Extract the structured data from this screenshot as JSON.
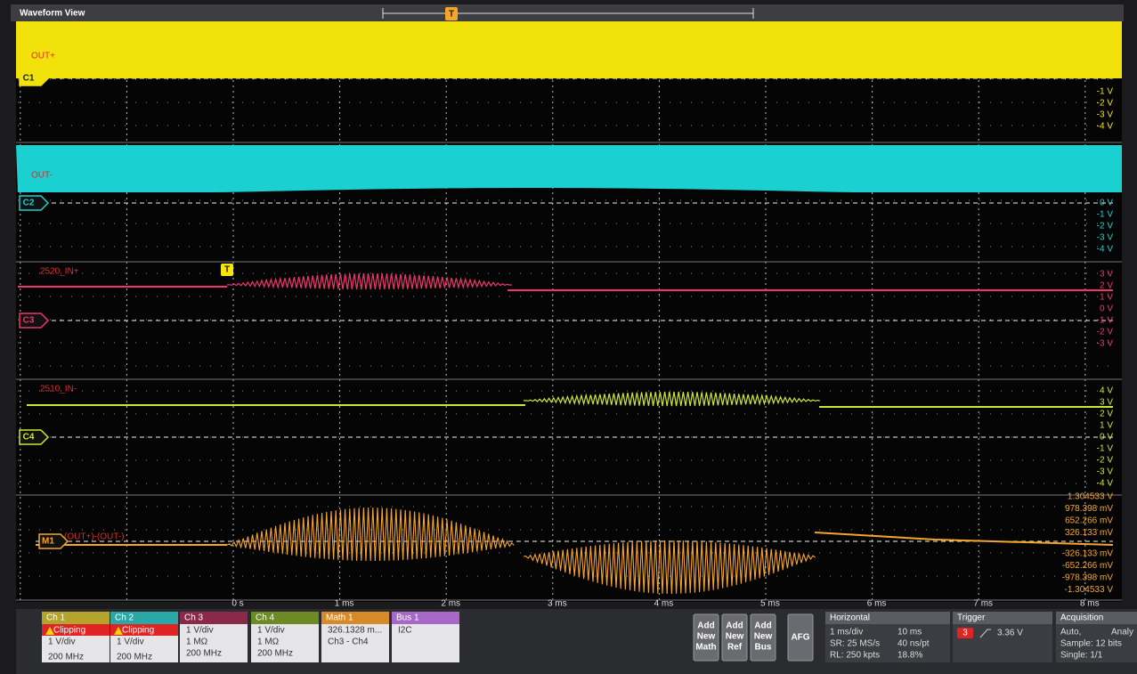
{
  "header": {
    "title": "Waveform View"
  },
  "trigger_marker": "T",
  "channels": [
    {
      "badge": "C1",
      "label": "OUT+",
      "color": "#f2e20c",
      "scale": [
        "-1 V",
        "-2 V",
        "-3 V",
        "-4 V"
      ]
    },
    {
      "badge": "C2",
      "label": "OUT-",
      "color": "#1ad0d0",
      "scale": [
        "0 V",
        "-1 V",
        "-2 V",
        "-3 V",
        "-4 V"
      ]
    },
    {
      "badge": "C3",
      "label": "2520_IN+",
      "color": "#f0356e",
      "scale": [
        "3 V",
        "2 V",
        "1 V",
        "0 V",
        "-1 V",
        "-2 V",
        "-3 V"
      ]
    },
    {
      "badge": "C4",
      "label": "2510_IN-",
      "color": "#c9e832",
      "scale": [
        "4 V",
        "3 V",
        "2 V",
        "1 V",
        "0 V",
        "-1 V",
        "-2 V",
        "-3 V",
        "-4 V"
      ]
    },
    {
      "badge": "M1",
      "label": "(OUT+)-(OUT-)",
      "color": "#f5a52a",
      "scale": [
        "1.304533 V",
        "978.398 mV",
        "652.266 mV",
        "326.133 mV",
        "-326.133 mV",
        "-652.266 mV",
        "-978.398 mV",
        "-1.304533 V"
      ]
    }
  ],
  "time_axis": [
    "0 s",
    "1 ms",
    "2 ms",
    "3 ms",
    "4 ms",
    "5 ms",
    "6 ms",
    "7 ms",
    "8 ms"
  ],
  "channel_panels": [
    {
      "title": "Ch 1",
      "color": "#b5a42c",
      "alert": "Clipping",
      "lines": [
        "1 V/div",
        "200 MHz"
      ]
    },
    {
      "title": "Ch 2",
      "color": "#2aa8a8",
      "alert": "Clipping",
      "lines": [
        "1 V/div",
        "200 MHz"
      ]
    },
    {
      "title": "Ch 3",
      "color": "#8a2a48",
      "lines": [
        "1 V/div",
        "1 MΩ",
        "200 MHz"
      ]
    },
    {
      "title": "Ch 4",
      "color": "#6e8a24",
      "lines": [
        "1 V/div",
        "1 MΩ",
        "200 MHz"
      ]
    },
    {
      "title": "Math 1",
      "color": "#d88a28",
      "lines": [
        "326.1328 m...",
        "Ch3 - Ch4"
      ]
    },
    {
      "title": "Bus 1",
      "color": "#a868c8",
      "lines": [
        "I2C"
      ]
    }
  ],
  "buttons": [
    "Add New Math",
    "Add New Ref",
    "Add New Bus",
    "AFG"
  ],
  "horizontal": {
    "title": "Horizontal",
    "rows": [
      [
        "1 ms/div",
        "10 ms"
      ],
      [
        "SR: 25 MS/s",
        "40 ns/pt"
      ],
      [
        "RL: 250 kpts",
        "18.8%"
      ]
    ]
  },
  "trigger": {
    "title": "Trigger",
    "source": "3",
    "level": "3.36 V"
  },
  "acquisition": {
    "title": "Acquisition",
    "lines": [
      "Auto,",
      "Analy",
      "Sample: 12 bits",
      "Single: 1/1"
    ]
  }
}
